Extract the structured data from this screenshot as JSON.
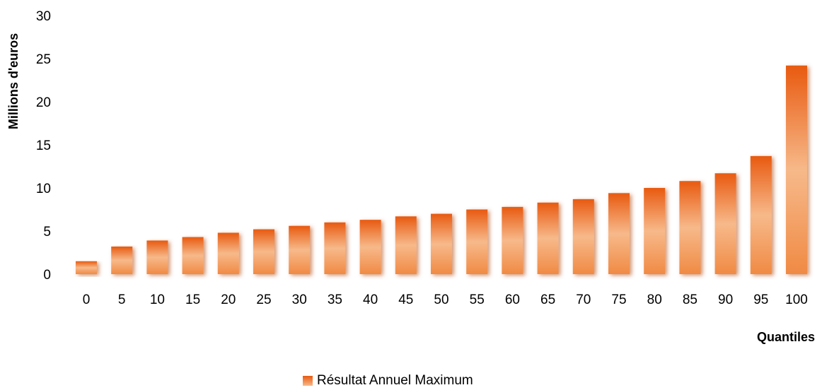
{
  "chart_data": {
    "type": "bar",
    "title": "",
    "xlabel": "Quantiles",
    "ylabel": "Millions d'euros",
    "categories": [
      "0",
      "5",
      "10",
      "15",
      "20",
      "25",
      "30",
      "35",
      "40",
      "45",
      "50",
      "55",
      "60",
      "65",
      "70",
      "75",
      "80",
      "85",
      "90",
      "95",
      "100"
    ],
    "series": [
      {
        "name": "Résultat Annuel Maximum",
        "values": [
          1.5,
          3.2,
          3.9,
          4.3,
          4.8,
          5.2,
          5.6,
          6.0,
          6.3,
          6.7,
          7.0,
          7.5,
          7.8,
          8.3,
          8.7,
          9.4,
          10.0,
          10.8,
          11.7,
          13.7,
          24.2
        ]
      }
    ],
    "ylim": [
      0,
      30
    ],
    "yticks": [
      0,
      5,
      10,
      15,
      20,
      25,
      30
    ],
    "grid": false,
    "legend_position": "bottom",
    "colors": {
      "bar_top": "#e85a10",
      "bar_mid": "#f7b98a",
      "bar_bottom": "#f08a44",
      "shadow": "#b04008"
    }
  }
}
